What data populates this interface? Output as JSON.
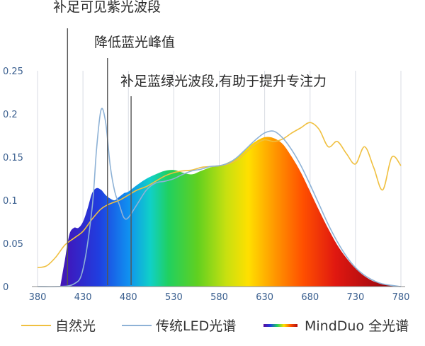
{
  "chart_data": {
    "type": "area",
    "title": "",
    "xlabel": "",
    "ylabel": "",
    "xlim": [
      380,
      780
    ],
    "ylim": [
      0,
      0.25
    ],
    "x_ticks": [
      "380",
      "430",
      "480",
      "530",
      "580",
      "630",
      "680",
      "730",
      "780"
    ],
    "y_ticks": [
      "0",
      "0.05",
      "0.1",
      "0.15",
      "0.2",
      "0.25"
    ],
    "grid": "vertical",
    "legend": "bottom",
    "annotations": [
      {
        "text": "补足可见紫光波段",
        "x": 413
      },
      {
        "text": "降低蓝光峰值",
        "x": 457
      },
      {
        "text": "补足蓝绿光波段,有助于提升专注力",
        "x": 483
      }
    ],
    "series": [
      {
        "name": "自然光",
        "color": "#f0c040",
        "style": "line",
        "points": [
          [
            380,
            0.022
          ],
          [
            390,
            0.024
          ],
          [
            400,
            0.034
          ],
          [
            410,
            0.048
          ],
          [
            420,
            0.056
          ],
          [
            430,
            0.064
          ],
          [
            440,
            0.078
          ],
          [
            450,
            0.09
          ],
          [
            460,
            0.096
          ],
          [
            470,
            0.1
          ],
          [
            480,
            0.106
          ],
          [
            490,
            0.112
          ],
          [
            500,
            0.116
          ],
          [
            510,
            0.122
          ],
          [
            520,
            0.128
          ],
          [
            530,
            0.132
          ],
          [
            540,
            0.134
          ],
          [
            550,
            0.135
          ],
          [
            560,
            0.138
          ],
          [
            570,
            0.139
          ],
          [
            580,
            0.14
          ],
          [
            590,
            0.142
          ],
          [
            600,
            0.147
          ],
          [
            610,
            0.156
          ],
          [
            620,
            0.165
          ],
          [
            630,
            0.17
          ],
          [
            640,
            0.168
          ],
          [
            650,
            0.171
          ],
          [
            660,
            0.178
          ],
          [
            670,
            0.184
          ],
          [
            680,
            0.19
          ],
          [
            690,
            0.182
          ],
          [
            700,
            0.162
          ],
          [
            710,
            0.168
          ],
          [
            720,
            0.154
          ],
          [
            730,
            0.142
          ],
          [
            740,
            0.162
          ],
          [
            750,
            0.138
          ],
          [
            760,
            0.112
          ],
          [
            770,
            0.15
          ],
          [
            780,
            0.14
          ]
        ]
      },
      {
        "name": "传统LED光谱",
        "color": "#8eb2d6",
        "style": "line",
        "points": [
          [
            380,
            0.0
          ],
          [
            400,
            0.0
          ],
          [
            420,
            0.003
          ],
          [
            430,
            0.02
          ],
          [
            440,
            0.09
          ],
          [
            445,
            0.16
          ],
          [
            450,
            0.205
          ],
          [
            455,
            0.19
          ],
          [
            460,
            0.14
          ],
          [
            465,
            0.11
          ],
          [
            470,
            0.095
          ],
          [
            475,
            0.08
          ],
          [
            480,
            0.08
          ],
          [
            490,
            0.096
          ],
          [
            500,
            0.112
          ],
          [
            510,
            0.12
          ],
          [
            520,
            0.122
          ],
          [
            530,
            0.125
          ],
          [
            540,
            0.13
          ],
          [
            550,
            0.134
          ],
          [
            560,
            0.136
          ],
          [
            570,
            0.139
          ],
          [
            580,
            0.14
          ],
          [
            590,
            0.143
          ],
          [
            600,
            0.15
          ],
          [
            610,
            0.16
          ],
          [
            620,
            0.17
          ],
          [
            630,
            0.178
          ],
          [
            640,
            0.18
          ],
          [
            650,
            0.172
          ],
          [
            660,
            0.158
          ],
          [
            670,
            0.14
          ],
          [
            680,
            0.118
          ],
          [
            690,
            0.095
          ],
          [
            700,
            0.072
          ],
          [
            710,
            0.052
          ],
          [
            720,
            0.035
          ],
          [
            730,
            0.022
          ],
          [
            740,
            0.013
          ],
          [
            750,
            0.007
          ],
          [
            760,
            0.003
          ],
          [
            780,
            0.0
          ]
        ]
      },
      {
        "name": "MindDuo 全光谱",
        "color": "spectrum",
        "style": "area",
        "points": [
          [
            405,
            0.0
          ],
          [
            410,
            0.03
          ],
          [
            415,
            0.06
          ],
          [
            420,
            0.068
          ],
          [
            425,
            0.068
          ],
          [
            430,
            0.075
          ],
          [
            435,
            0.09
          ],
          [
            440,
            0.108
          ],
          [
            445,
            0.114
          ],
          [
            450,
            0.112
          ],
          [
            455,
            0.106
          ],
          [
            460,
            0.102
          ],
          [
            465,
            0.1
          ],
          [
            470,
            0.104
          ],
          [
            475,
            0.108
          ],
          [
            480,
            0.11
          ],
          [
            490,
            0.118
          ],
          [
            500,
            0.125
          ],
          [
            510,
            0.13
          ],
          [
            520,
            0.134
          ],
          [
            530,
            0.135
          ],
          [
            540,
            0.132
          ],
          [
            550,
            0.13
          ],
          [
            560,
            0.134
          ],
          [
            570,
            0.138
          ],
          [
            580,
            0.14
          ],
          [
            590,
            0.144
          ],
          [
            600,
            0.15
          ],
          [
            610,
            0.16
          ],
          [
            620,
            0.168
          ],
          [
            630,
            0.173
          ],
          [
            640,
            0.172
          ],
          [
            650,
            0.165
          ],
          [
            660,
            0.15
          ],
          [
            670,
            0.132
          ],
          [
            680,
            0.11
          ],
          [
            690,
            0.088
          ],
          [
            700,
            0.067
          ],
          [
            710,
            0.048
          ],
          [
            720,
            0.033
          ],
          [
            730,
            0.021
          ],
          [
            740,
            0.012
          ],
          [
            750,
            0.006
          ],
          [
            760,
            0.003
          ],
          [
            770,
            0.001
          ],
          [
            778,
            0.0
          ]
        ]
      }
    ]
  }
}
